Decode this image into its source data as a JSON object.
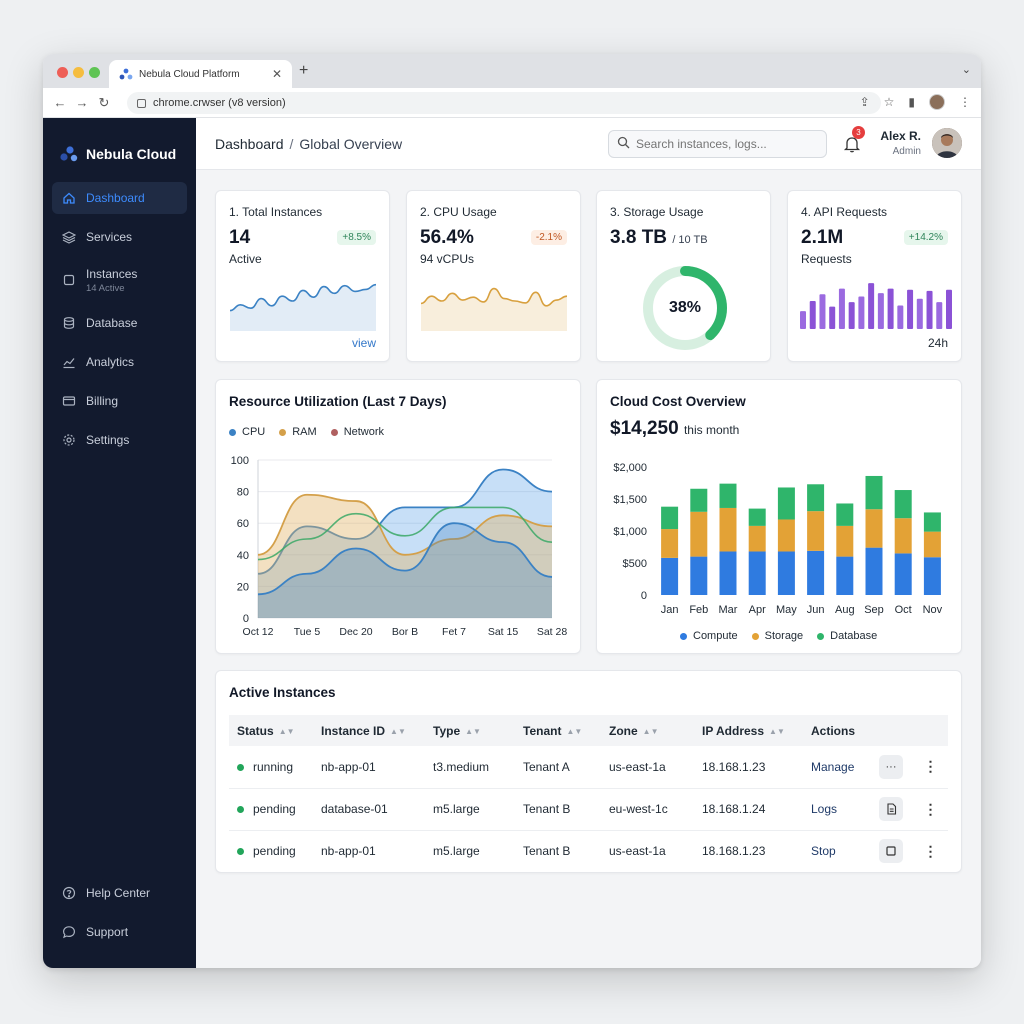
{
  "browser": {
    "tab_title": "Nebula Cloud Platform",
    "url": "chrome.crwser (v8 version)"
  },
  "sidebar": {
    "brand": "Nebula Cloud",
    "items": [
      {
        "label": "Dashboard",
        "icon": "home-icon",
        "active": true
      },
      {
        "label": "Services",
        "icon": "layers-icon"
      },
      {
        "label": "Instances",
        "sub": "14 Active",
        "icon": "server-icon"
      },
      {
        "label": "Database",
        "icon": "database-icon"
      },
      {
        "label": "Analytics",
        "icon": "chart-line-icon"
      },
      {
        "label": "Billing",
        "icon": "card-icon"
      },
      {
        "label": "Settings",
        "icon": "gear-icon"
      }
    ],
    "footer": [
      {
        "label": "Help Center",
        "icon": "help-icon"
      },
      {
        "label": "Support",
        "icon": "chat-icon"
      }
    ]
  },
  "header": {
    "breadcrumb_root": "Dashboard",
    "breadcrumb_sep": "/",
    "breadcrumb_current": "Global Overview",
    "search_placeholder": "Search instances, logs...",
    "notifications": "3",
    "user_name": "Alex R.",
    "user_role": "Admin"
  },
  "kpis": [
    {
      "title": "1. Total Instances",
      "value": "14",
      "sub": "Active",
      "delta": "+8.5%",
      "footer": "view"
    },
    {
      "title": "2. CPU Usage",
      "value": "56.4%",
      "sub": "94 vCPUs",
      "delta": "-2.1%"
    },
    {
      "title": "3. Storage Usage",
      "value": "3.8 TB",
      "value_suffix": "/ 10 TB",
      "ring_label": "38%",
      "ring_fraction": 0.38
    },
    {
      "title": "4. API Requests",
      "value": "2.1M",
      "sub": "Requests",
      "delta": "+14.2%",
      "footer": "24h"
    }
  ],
  "colors": {
    "cpu": "#3b82c4",
    "ram": "#d4a04a",
    "network": "#b06060",
    "compute": "#2f7be0",
    "storage": "#e3a236",
    "database": "#2fb56b"
  },
  "chart_data": [
    {
      "type": "area",
      "title": "Resource Utilization (Last 7 Days)",
      "categories": [
        "Oct 12",
        "Tue 5",
        "Dec 20",
        "Bor B",
        "Fet 7",
        "Sat 15",
        "Sat 28"
      ],
      "ylim": [
        0,
        100
      ],
      "yticks": [
        0,
        20,
        40,
        60,
        80,
        100
      ],
      "series": [
        {
          "name": "CPU",
          "values": [
            15,
            28,
            44,
            30,
            60,
            48,
            26
          ]
        },
        {
          "name": "RAM",
          "values": [
            40,
            78,
            74,
            40,
            50,
            65,
            58
          ]
        },
        {
          "name": "Network",
          "values": [
            28,
            58,
            50,
            70,
            70,
            94,
            80
          ]
        }
      ]
    },
    {
      "type": "bar",
      "title": "Cloud Cost Overview",
      "total": "$14,250",
      "total_suffix": "this month",
      "stacked": true,
      "categories": [
        "Jan",
        "Feb",
        "Mar",
        "Apr",
        "May",
        "Jun",
        "Aug",
        "Sep",
        "Oct",
        "Nov"
      ],
      "ylim": [
        0,
        2000
      ],
      "yticks": [
        "0",
        "$500",
        "$1,000",
        "$1,500",
        "$2,000"
      ],
      "series": [
        {
          "name": "Compute",
          "values": [
            580,
            600,
            680,
            680,
            680,
            690,
            600,
            740,
            650,
            590
          ]
        },
        {
          "name": "Storage",
          "values": [
            450,
            700,
            680,
            400,
            500,
            620,
            480,
            600,
            550,
            400
          ]
        },
        {
          "name": "Database",
          "values": [
            350,
            360,
            380,
            270,
            500,
            420,
            350,
            520,
            440,
            300
          ]
        }
      ]
    },
    {
      "type": "line",
      "title": "",
      "series": [
        {
          "values": [
            30,
            42,
            35,
            55,
            40,
            60,
            50,
            72,
            58,
            80,
            66,
            82,
            70,
            74,
            84
          ]
        }
      ]
    },
    {
      "type": "line",
      "title": "",
      "series": [
        {
          "values": [
            45,
            60,
            50,
            66,
            52,
            58,
            48,
            76,
            55,
            50,
            46,
            68,
            40,
            52,
            60
          ]
        }
      ]
    },
    {
      "type": "bar",
      "title": "",
      "values": [
        32,
        50,
        62,
        40,
        72,
        48,
        58,
        82,
        64,
        72,
        42,
        70,
        54,
        68,
        48,
        70
      ]
    }
  ],
  "table": {
    "title": "Active Instances",
    "columns": [
      "Status",
      "Instance ID",
      "Type",
      "Tenant",
      "Zone",
      "IP Address",
      "Actions"
    ],
    "rows": [
      {
        "status": "running",
        "id": "nb-app-01",
        "type": "t3.medium",
        "tenant": "Tenant A",
        "zone": "us-east-1a",
        "ip": "18.168.1.23",
        "action": "Manage",
        "btn": "···"
      },
      {
        "status": "pending",
        "id": "database-01",
        "type": "m5.large",
        "tenant": "Tenant B",
        "zone": "eu-west-1c",
        "ip": "18.168.1.24",
        "action": "Logs",
        "btn": "doc"
      },
      {
        "status": "pending",
        "id": "nb-app-01",
        "type": "m5.large",
        "tenant": "Tenant B",
        "zone": "us-east-1a",
        "ip": "18.168.1.23",
        "action": "Stop",
        "btn": "square"
      }
    ]
  }
}
